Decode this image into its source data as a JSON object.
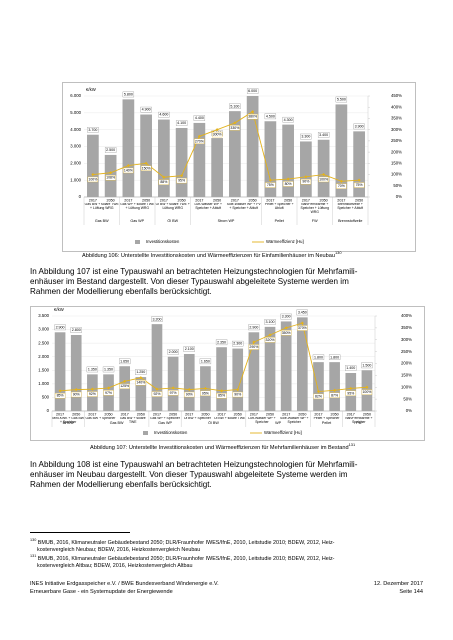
{
  "chart_data": [
    {
      "type": "bar",
      "y_unit": "€/kW",
      "grid": true,
      "legend": "bottom",
      "groups": [
        {
          "name": "Gas BW",
          "systems": [
            {
              "name": "Gas BW + solare TWE + Lüftung WRG",
              "years": [
                "2017",
                "2050"
              ]
            }
          ]
        },
        {
          "name": "Gas WP",
          "systems": [
            {
              "name": "Gas WP + solare TWE + Lüftung WRG",
              "years": [
                "2017",
                "2050"
              ]
            }
          ]
        },
        {
          "name": "Öl BW",
          "systems": [
            {
              "name": "Öl BW + solare TWE + Lüftung WRG",
              "years": [
                "2017",
                "2050"
              ]
            }
          ]
        },
        {
          "name": "Strom WP",
          "systems": [
            {
              "name": "Luft-Wasser WP + Speicher + Abluft",
              "years": [
                "2017",
                "2050"
              ]
            },
            {
              "name": "Sole-Wasser WP + PV + Speicher + Abluft",
              "years": [
                "2017",
                "2050"
              ]
            }
          ]
        },
        {
          "name": "Pellet",
          "systems": [
            {
              "name": "Pellet + Speicher + Abluft",
              "years": [
                "2017",
                "2050"
              ]
            }
          ]
        },
        {
          "name": "FW",
          "systems": [
            {
              "name": "Nah/Fernwärme + Speicher + Lüftung WRG",
              "years": [
                "2017",
                "2050"
              ]
            }
          ]
        },
        {
          "name": "Brennstoffzelle",
          "systems": [
            {
              "name": "Brennstoffzelle + Speicher + Abluft",
              "years": [
                "2017",
                "2050"
              ]
            }
          ]
        }
      ],
      "ylim": [
        0,
        6000
      ],
      "yticks": [
        0,
        {
          "value": 1000,
          "label": "1.000"
        },
        {
          "value": 2000,
          "label": "2.000"
        },
        {
          "value": 3000,
          "label": "3.000"
        },
        {
          "value": 4000,
          "label": "4.000"
        },
        {
          "value": 5000,
          "label": "5.000"
        },
        {
          "value": 6000,
          "label": "6.000"
        }
      ],
      "y2lim": [
        0,
        450
      ],
      "y2ticks": [
        {
          "value": 0,
          "label": "0%"
        },
        {
          "value": 50,
          "label": "50%"
        },
        {
          "value": 100,
          "label": "100%"
        },
        {
          "value": 150,
          "label": "150%"
        },
        {
          "value": 200,
          "label": "200%"
        },
        {
          "value": 250,
          "label": "250%"
        },
        {
          "value": 300,
          "label": "300%"
        },
        {
          "value": 350,
          "label": "350%"
        },
        {
          "value": 400,
          "label": "400%"
        },
        {
          "value": 450,
          "label": "450%"
        }
      ],
      "series": [
        {
          "name": "Investitionskosten",
          "color": "#a6a6a6",
          "values": [
            3700,
            2500,
            5800,
            4900,
            4600,
            4100,
            4400,
            3500,
            5100,
            6000,
            4500,
            4300,
            3300,
            3400,
            5500,
            3900
          ],
          "value_labels": [
            "3.700",
            "2.500",
            "5.800",
            "4.900",
            "4.600",
            "4.100",
            "4.400",
            "3.500",
            "5.100",
            "6.000",
            "4.500",
            "4.300",
            "3.300",
            "3.400",
            "5.500",
            "3.900"
          ]
        },
        {
          "name": "Wärmeeffizienz [Hu]",
          "type": "line",
          "axis": "y2",
          "color": "#e3b21c",
          "values": [
            100,
            108,
            140,
            150,
            88,
            95,
            270,
            300,
            330,
            380,
            75,
            80,
            90,
            100,
            70,
            75
          ],
          "value_labels": [
            "100%",
            "108%",
            "140%",
            "150%",
            "88%",
            "95%",
            "270%",
            "300%",
            "330%",
            "380%",
            "75%",
            "80%",
            "90%",
            "100%",
            "70%",
            "75%"
          ]
        }
      ]
    },
    {
      "type": "bar",
      "y_unit": "€/kW",
      "grid": true,
      "legend": "bottom",
      "groups": [
        {
          "name": "BHKW",
          "systems": [
            {
              "name": "Mini-KWK + Gas BW + Speicher",
              "years": [
                "2017",
                "2050"
              ]
            }
          ]
        },
        {
          "name": "Gas BW",
          "systems": [
            {
              "name": "Gas BW + Speicher",
              "years": [
                "2017",
                "2050"
              ]
            },
            {
              "name": "Gas BW + solare TWE",
              "years": [
                "2017",
                "2050"
              ]
            }
          ]
        },
        {
          "name": "Gas WP",
          "systems": [
            {
              "name": "Gas WP + Speicher",
              "years": [
                "2017",
                "2050"
              ]
            }
          ]
        },
        {
          "name": "Öl BW",
          "systems": [
            {
              "name": "Öl BW + Speicher",
              "years": [
                "2017",
                "2050"
              ]
            },
            {
              "name": "Öl BW + solare TWE",
              "years": [
                "2017",
                "2050"
              ]
            }
          ]
        },
        {
          "name": "WP",
          "systems": [
            {
              "name": "Luft-Wasser WP + Speicher",
              "years": [
                "2017",
                "2050"
              ]
            },
            {
              "name": "Sole-Wasser WP + Speicher",
              "years": [
                "2017",
                "2050"
              ]
            }
          ]
        },
        {
          "name": "Pellet",
          "systems": [
            {
              "name": "Pellet + Speicher",
              "years": [
                "2017",
                "2050"
              ]
            }
          ]
        },
        {
          "name": "FW",
          "systems": [
            {
              "name": "Nah/Fernwärme + Speicher",
              "years": [
                "2017",
                "2050"
              ]
            }
          ]
        }
      ],
      "ylim": [
        0,
        3500
      ],
      "yticks": [
        0,
        500,
        {
          "value": 1000,
          "label": "1.000"
        },
        {
          "value": 1500,
          "label": "1.500"
        },
        {
          "value": 2000,
          "label": "2.000"
        },
        {
          "value": 2500,
          "label": "2.500"
        },
        {
          "value": 3000,
          "label": "3.000"
        },
        {
          "value": 3500,
          "label": "3.500"
        }
      ],
      "y2lim": [
        0,
        400
      ],
      "y2ticks": [
        {
          "value": 0,
          "label": "0%"
        },
        {
          "value": 50,
          "label": "50%"
        },
        {
          "value": 100,
          "label": "100%"
        },
        {
          "value": 150,
          "label": "150%"
        },
        {
          "value": 200,
          "label": "200%"
        },
        {
          "value": 250,
          "label": "250%"
        },
        {
          "value": 300,
          "label": "300%"
        },
        {
          "value": 350,
          "label": "350%"
        },
        {
          "value": 400,
          "label": "400%"
        }
      ],
      "series": [
        {
          "name": "Investitionskosten",
          "color": "#a6a6a6",
          "values": [
            2900,
            2800,
            1350,
            1350,
            1650,
            1250,
            3200,
            2000,
            2100,
            1650,
            2350,
            2300,
            2900,
            3100,
            3300,
            3450,
            1800,
            1800,
            1400,
            1500
          ],
          "value_labels": [
            "2.900",
            "2.800",
            "1.350",
            "1.350",
            "1.650",
            "1.250",
            "3.200",
            "2.000",
            "2.100",
            "1.650",
            "2.350",
            "2.300",
            "2.900",
            "3.100",
            "3.300",
            "3.450",
            "1.800",
            "1.800",
            "1.400",
            "1.500"
          ]
        },
        {
          "name": "Wärmeeffizienz [Hu]",
          "type": "line",
          "axis": "y2",
          "color": "#e3b21c",
          "values": [
            85,
            90,
            92,
            97,
            125,
            140,
            92,
            97,
            90,
            95,
            85,
            90,
            290,
            320,
            350,
            370,
            82,
            87,
            95,
            100
          ],
          "value_labels": [
            "85%",
            "90%",
            "92%",
            "97%",
            "125%",
            "140%",
            "92%",
            "97%",
            "90%",
            "95%",
            "85%",
            "90%",
            "290%",
            "320%",
            "350%",
            "370%",
            "82%",
            "87%",
            "95%",
            "100%"
          ]
        }
      ]
    }
  ],
  "captions": [
    {
      "text": "Abbildung 106: Unterstellte Investitionskosten und Wärmeeffizienzen für Einfamilienhäuser im Neubau",
      "footnote_ref": "130"
    },
    {
      "text": "Abbildung 107: Unterstellte Investitionskosten und Wärmeeffizienzen für Mehrfamilienhäuser im Bestand",
      "footnote_ref": "131"
    }
  ],
  "paragraphs": [
    {
      "lines": [
        "In Abbildung 107 ist eine Typauswahl an betrachteten Heizungstechnologien für Mehrfamili-",
        "enhäuser im Bestand dargestellt. Von dieser Typauswahl abgeleitete Systeme werden im",
        "Rahmen der Modellierung ebenfalls berücksichtigt."
      ]
    },
    {
      "lines": [
        "In Abbildung 108 ist eine Typauswahl an betrachteten Heizungstechnologien für Mehrfamili-",
        "enhäuser im Neubau dargestellt. Von dieser Typauswahl abgeleitete Systeme werden im",
        "Rahmen der Modellierung ebenfalls berücksichtigt."
      ]
    }
  ],
  "footnotes": [
    {
      "number": "130",
      "lines": [
        "BMUB, 2016, Klimaneutraler Gebäudebestand 2050; DLR/Fraunhofer IWES/IfnE, 2010, Leitstudie 2010; BDEW, 2012, Heiz-",
        "kostenvergleich Neubau; BDEW, 2016, Heizkostenvergleich Neubau"
      ]
    },
    {
      "number": "131",
      "lines": [
        "BMUB, 2016, Klimaneutraler Gebäudebestand 2050; DLR/Fraunhofer IWES/IfnE, 2010, Leitstudie 2010; BDEW, 2012, Heiz-",
        "kostenvergleich Altbau; BDEW, 2016, Heizkostenvergleich Altbau"
      ]
    }
  ],
  "footer": {
    "left_1": "INES Initiative Erdgasspeicher e.V. / BWE Bundesverband Windenergie e.V.",
    "right_1": "12. Dezember 2017",
    "left_2": "Erneuerbare Gase - ein Systemupdate der Energiewende",
    "right_2": "Seite 144"
  }
}
